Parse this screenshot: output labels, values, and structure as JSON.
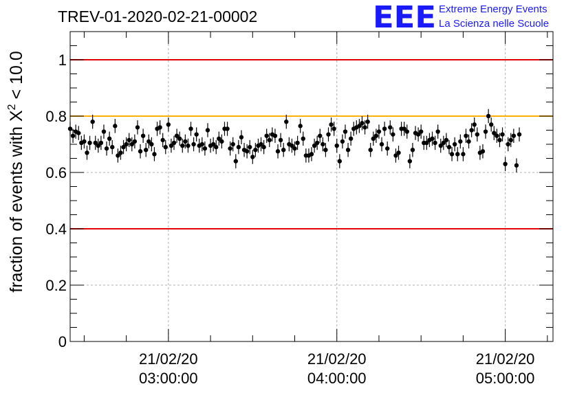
{
  "title": "TREV-01-2020-02-21-00002",
  "logo": {
    "mark": "EEE",
    "line1": "Extreme Energy Events",
    "line2": "La Scienza nelle Scuole",
    "color": "#1a1aff"
  },
  "chart_data": {
    "type": "scatter",
    "title": "TREV-01-2020-02-21-00002",
    "ylabel_prefix": "fraction of events with ",
    "ylabel_symbol": "X",
    "ylabel_sup": "2",
    "ylabel_suffix": " < 10.0",
    "xlabel": "",
    "x_range": [
      "2020-02-21T02:25:00",
      "2020-02-21T05:17:00"
    ],
    "ylim": [
      0,
      1.1
    ],
    "y_ticks": [
      0,
      0.2,
      0.4,
      0.6,
      0.8,
      1
    ],
    "y_tick_labels": [
      "0",
      "0.2",
      "0.4",
      "0.6",
      "0.8",
      "1"
    ],
    "x_ticks": [
      {
        "date": "21/02/20",
        "time": "03:00:00",
        "at": "2020-02-21T03:00:00"
      },
      {
        "date": "21/02/20",
        "time": "04:00:00",
        "at": "2020-02-21T04:00:00"
      },
      {
        "date": "21/02/20",
        "time": "05:00:00",
        "at": "2020-02-21T05:00:00"
      }
    ],
    "grid": true,
    "reference_lines": [
      {
        "y": 1.0,
        "color": "#e00000"
      },
      {
        "y": 0.4,
        "color": "#e00000"
      },
      {
        "y": 0.8,
        "color": "#ffb000"
      }
    ],
    "marker_color": "#000000",
    "y_error": 0.025,
    "series": [
      {
        "x_start": "2020-02-21T02:25:00",
        "x_step_minutes": 1,
        "values": [
          0.755,
          0.73,
          0.745,
          0.74,
          0.705,
          0.71,
          0.67,
          0.705,
          0.78,
          0.705,
          0.695,
          0.705,
          0.745,
          0.685,
          0.72,
          0.69,
          0.765,
          0.66,
          0.67,
          0.69,
          0.7,
          0.715,
          0.7,
          0.71,
          0.76,
          0.675,
          0.73,
          0.68,
          0.71,
          0.7,
          0.665,
          0.755,
          0.76,
          0.715,
          0.69,
          0.77,
          0.695,
          0.705,
          0.73,
          0.72,
          0.695,
          0.71,
          0.695,
          0.755,
          0.7,
          0.735,
          0.695,
          0.7,
          0.685,
          0.75,
          0.695,
          0.7,
          0.69,
          0.72,
          0.71,
          0.755,
          0.755,
          0.685,
          0.7,
          0.64,
          0.69,
          0.725,
          0.68,
          0.675,
          0.69,
          0.655,
          0.68,
          0.695,
          0.7,
          0.69,
          0.73,
          0.715,
          0.735,
          0.73,
          0.675,
          0.715,
          0.68,
          0.78,
          0.7,
          0.695,
          0.685,
          0.705,
          0.765,
          0.72,
          0.66,
          0.66,
          0.665,
          0.695,
          0.705,
          0.73,
          0.7,
          0.68,
          0.735,
          0.77,
          0.755,
          0.695,
          0.64,
          0.71,
          0.745,
          0.68,
          0.72,
          0.755,
          0.76,
          0.765,
          0.775,
          0.76,
          0.78,
          0.68,
          0.72,
          0.73,
          0.745,
          0.7,
          0.755,
          0.685,
          0.76,
          0.735,
          0.66,
          0.67,
          0.755,
          0.755,
          0.745,
          0.64,
          0.68,
          0.74,
          0.735,
          0.745,
          0.705,
          0.705,
          0.715,
          0.72,
          0.705,
          0.745,
          0.695,
          0.705,
          0.715,
          0.69,
          0.665,
          0.7,
          0.665,
          0.71,
          0.665,
          0.73,
          0.71,
          0.75,
          0.77,
          0.735,
          0.67,
          0.675,
          0.745,
          0.8,
          0.77,
          0.74,
          0.73,
          0.715,
          0.735,
          0.63,
          0.7,
          0.715,
          0.73,
          0.625,
          0.735
        ]
      }
    ]
  }
}
